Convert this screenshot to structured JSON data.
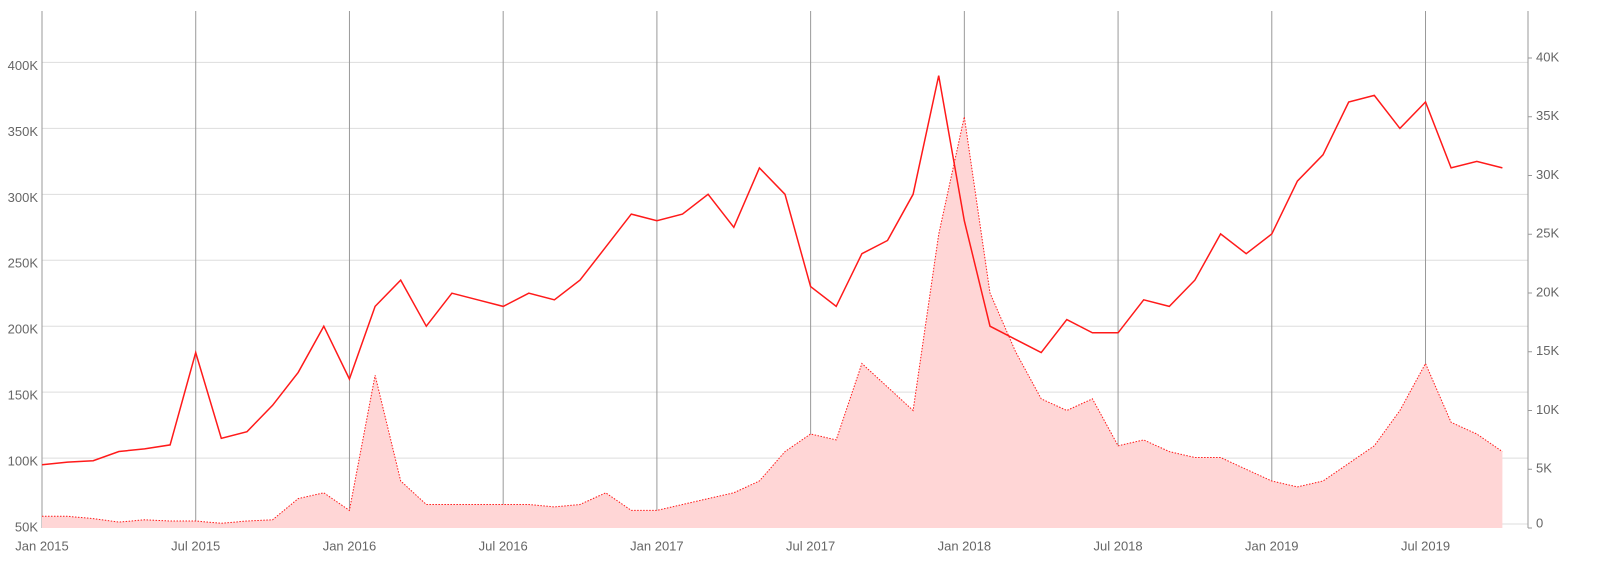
{
  "chart_data": {
    "type": "line",
    "x": [
      "2015-01",
      "2015-02",
      "2015-03",
      "2015-04",
      "2015-05",
      "2015-06",
      "2015-07",
      "2015-08",
      "2015-09",
      "2015-10",
      "2015-11",
      "2015-12",
      "2016-01",
      "2016-02",
      "2016-03",
      "2016-04",
      "2016-05",
      "2016-06",
      "2016-07",
      "2016-08",
      "2016-09",
      "2016-10",
      "2016-11",
      "2016-12",
      "2017-01",
      "2017-02",
      "2017-03",
      "2017-04",
      "2017-05",
      "2017-06",
      "2017-07",
      "2017-08",
      "2017-09",
      "2017-10",
      "2017-11",
      "2017-12",
      "2018-01",
      "2018-02",
      "2018-03",
      "2018-04",
      "2018-05",
      "2018-06",
      "2018-07",
      "2018-08",
      "2018-09",
      "2018-10",
      "2018-11",
      "2018-12",
      "2019-01",
      "2019-02",
      "2019-03",
      "2019-04",
      "2019-05",
      "2019-06",
      "2019-07",
      "2019-08",
      "2019-09",
      "2019-10"
    ],
    "series": [
      {
        "color": "#ff1a1a",
        "values": [
          95000,
          97000,
          98000,
          105000,
          107000,
          110000,
          180000,
          115000,
          120000,
          140000,
          165000,
          200000,
          160000,
          215000,
          235000,
          200000,
          225000,
          220000,
          215000,
          225000,
          220000,
          235000,
          260000,
          285000,
          280000,
          285000,
          300000,
          275000,
          320000,
          300000,
          230000,
          215000,
          255000,
          265000,
          300000,
          390000,
          280000,
          200000,
          190000,
          180000,
          205000,
          195000,
          195000,
          220000,
          215000,
          235000,
          270000,
          255000,
          270000,
          310000,
          330000,
          370000,
          375000,
          350000,
          370000,
          320000,
          325000,
          320000
        ]
      },
      {
        "color": "#ff1a1a",
        "fill": "#ffd6d6",
        "axis": "y2",
        "values": [
          1000,
          1000,
          800,
          500,
          700,
          600,
          600,
          400,
          600,
          700,
          2500,
          3000,
          1500,
          13000,
          4000,
          2000,
          2000,
          2000,
          2000,
          2000,
          1800,
          2000,
          3000,
          1500,
          1500,
          2000,
          2500,
          3000,
          4000,
          6500,
          8000,
          7500,
          14000,
          12000,
          10000,
          25000,
          35000,
          20000,
          15000,
          11000,
          10000,
          11000,
          7000,
          7500,
          6500,
          6000,
          6000,
          5000,
          4000,
          3500,
          4000,
          5500,
          7000,
          10000,
          14000,
          9000,
          8000,
          6500
        ]
      }
    ],
    "xlim": [
      "2015-01",
      "2019-11"
    ],
    "xticks": [
      {
        "value": "2015-01",
        "label": "Jan 2015"
      },
      {
        "value": "2015-07",
        "label": "Jul 2015"
      },
      {
        "value": "2016-01",
        "label": "Jan 2016"
      },
      {
        "value": "2016-07",
        "label": "Jul 2016"
      },
      {
        "value": "2017-01",
        "label": "Jan 2017"
      },
      {
        "value": "2017-07",
        "label": "Jul 2017"
      },
      {
        "value": "2018-01",
        "label": "Jan 2018"
      },
      {
        "value": "2018-07",
        "label": "Jul 2018"
      },
      {
        "value": "2019-01",
        "label": "Jan 2019"
      },
      {
        "value": "2019-07",
        "label": "Jul 2019"
      }
    ],
    "ylim": [
      47000,
      439000
    ],
    "yticks": [
      {
        "value": 50000,
        "label": "50K"
      },
      {
        "value": 100000,
        "label": "100K"
      },
      {
        "value": 150000,
        "label": "150K"
      },
      {
        "value": 200000,
        "label": "200K"
      },
      {
        "value": 250000,
        "label": "250K"
      },
      {
        "value": 300000,
        "label": "300K"
      },
      {
        "value": 350000,
        "label": "350K"
      },
      {
        "value": 400000,
        "label": "400K"
      }
    ],
    "y2lim": [
      0,
      44000
    ],
    "y2ticks": [
      0,
      {
        "value": 5000,
        "label": "5K"
      },
      {
        "value": 10000,
        "label": "10K"
      },
      {
        "value": 15000,
        "label": "15K"
      },
      {
        "value": 20000,
        "label": "20K"
      },
      {
        "value": 25000,
        "label": "25K"
      },
      {
        "value": 30000,
        "label": "30K"
      },
      {
        "value": 35000,
        "label": "35K"
      },
      {
        "value": 40000,
        "label": "40K"
      }
    ],
    "grid": true
  }
}
